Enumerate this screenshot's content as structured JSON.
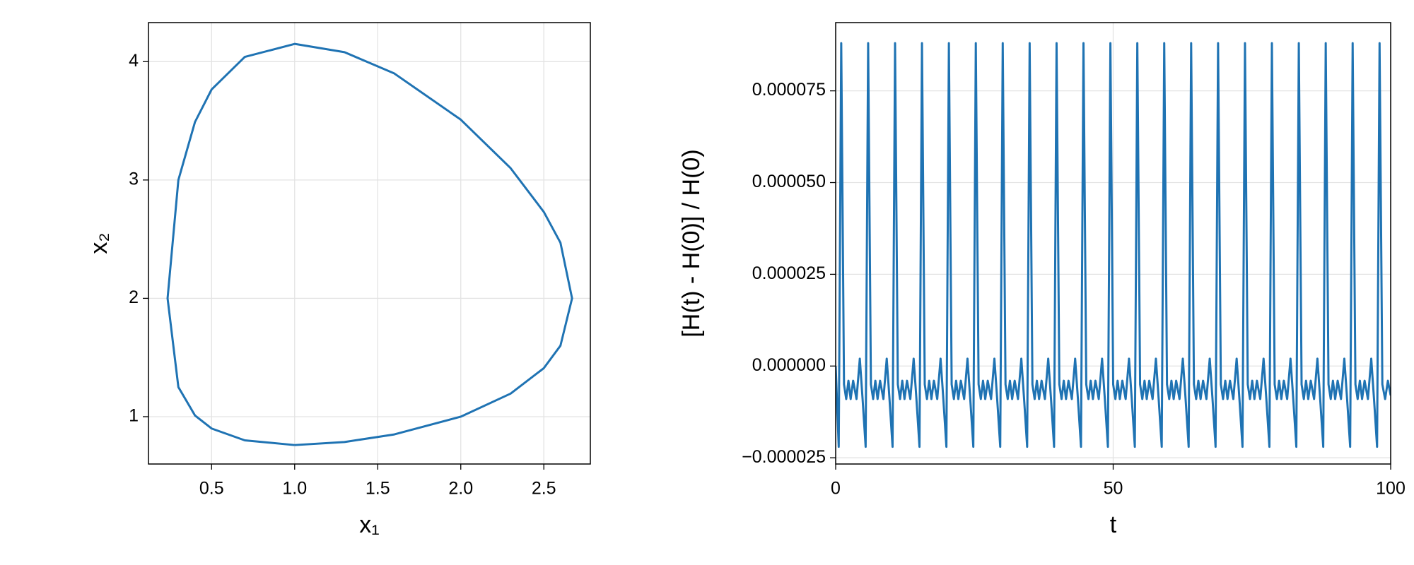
{
  "chart_data": [
    {
      "type": "line",
      "xlabel": "x₁",
      "ylabel": "x₂",
      "x": [
        1.0,
        1.3,
        1.6,
        2.0,
        2.3,
        2.5,
        2.6,
        2.67,
        2.6,
        2.5,
        2.3,
        2.0,
        1.6,
        1.3,
        1.0,
        0.7,
        0.5,
        0.4,
        0.3,
        0.235,
        0.3,
        0.4,
        0.5,
        0.7,
        1.0
      ],
      "series": [
        {
          "color": "#1f73b3",
          "values": [
            0.76,
            0.786,
            0.85,
            1.0,
            1.195,
            1.41,
            1.6,
            2.0,
            2.47,
            2.73,
            3.1,
            3.51,
            3.9,
            4.08,
            4.15,
            4.04,
            3.765,
            3.49,
            3.0,
            2.0,
            1.25,
            1.01,
            0.9,
            0.8,
            0.76
          ]
        }
      ],
      "xlim": [
        0.12,
        2.78
      ],
      "ylim": [
        0.6,
        4.33
      ],
      "xticks": [
        {
          "value": 0.5,
          "label": "0.5"
        },
        {
          "value": 1.0,
          "label": "1.0"
        },
        {
          "value": 1.5,
          "label": "1.5"
        },
        {
          "value": 2.0,
          "label": "2.0"
        },
        {
          "value": 2.5,
          "label": "2.5"
        }
      ],
      "yticks": [
        1,
        2,
        3,
        4
      ],
      "grid": true
    },
    {
      "type": "line",
      "xlabel": "t",
      "ylabel": "[H(t) - H(0)] / H(0)",
      "x": [
        0,
        0.55,
        1.0,
        1.5,
        1.9,
        2.3,
        2.7,
        3.15,
        3.75,
        4.35,
        4.85,
        5.4,
        5.85,
        6.35,
        6.75,
        7.15,
        7.55,
        8.0,
        8.6,
        9.2,
        9.7,
        10.25,
        10.7,
        11.2,
        11.6,
        12.0,
        12.4,
        12.85,
        13.45,
        14.05,
        14.55,
        15.1,
        15.55,
        16.05,
        16.45,
        16.85,
        17.25,
        17.7,
        18.3,
        18.9,
        19.4,
        19.95,
        20.4,
        20.9,
        21.3,
        21.7,
        22.1,
        22.55,
        23.15,
        23.75,
        24.25,
        24.8,
        25.25,
        25.75,
        26.15,
        26.55,
        26.95,
        27.4,
        28.0,
        28.6,
        29.1,
        29.65,
        30.1,
        30.6,
        31.0,
        31.4,
        31.8,
        32.25,
        32.85,
        33.45,
        33.95,
        34.5,
        34.95,
        35.45,
        35.85,
        36.25,
        36.65,
        37.1,
        37.7,
        38.3,
        38.8,
        39.35,
        39.8,
        40.3,
        40.7,
        41.1,
        41.5,
        41.95,
        42.55,
        43.15,
        43.65,
        44.2,
        44.65,
        45.15,
        45.55,
        45.95,
        46.35,
        46.8,
        47.4,
        48.0,
        48.5,
        49.05,
        49.5,
        50.0,
        50.4,
        50.8,
        51.2,
        51.65,
        52.25,
        52.85,
        53.35,
        53.9,
        54.35,
        54.85,
        55.25,
        55.65,
        56.05,
        56.5,
        57.1,
        57.7,
        58.2,
        58.75,
        59.2,
        59.7,
        60.1,
        60.5,
        60.9,
        61.35,
        61.95,
        62.55,
        63.05,
        63.6,
        64.05,
        64.55,
        64.95,
        65.35,
        65.75,
        66.2,
        66.8,
        67.4,
        67.9,
        68.45,
        68.9,
        69.4,
        69.8,
        70.2,
        70.6,
        71.05,
        71.65,
        72.25,
        72.75,
        73.3,
        73.75,
        74.25,
        74.65,
        75.05,
        75.45,
        75.9,
        76.5,
        77.1,
        77.6,
        78.15,
        78.6,
        79.1,
        79.5,
        79.9,
        80.3,
        80.75,
        81.35,
        81.95,
        82.45,
        83.0,
        83.45,
        83.95,
        84.35,
        84.75,
        85.15,
        85.6,
        86.2,
        86.8,
        87.3,
        87.85,
        88.3,
        88.8,
        89.2,
        89.6,
        90.0,
        90.45,
        91.05,
        91.65,
        92.15,
        92.7,
        93.15,
        93.65,
        94.05,
        94.45,
        94.85,
        95.3,
        95.9,
        96.5,
        97.0,
        97.55,
        98.0,
        98.5,
        99.0,
        99.5,
        100
      ],
      "series": [
        {
          "color": "#1f73b3",
          "values": [
            0,
            -2.2e-05,
            8.8e-05,
            -5e-06,
            -9e-06,
            -4e-06,
            -9e-06,
            -4e-06,
            -9e-06,
            2e-06,
            -9e-06,
            -2.2e-05,
            8.8e-05,
            -5e-06,
            -9e-06,
            -4e-06,
            -9e-06,
            -4e-06,
            -9e-06,
            2e-06,
            -9e-06,
            -2.2e-05,
            8.8e-05,
            -5e-06,
            -9e-06,
            -4e-06,
            -9e-06,
            -4e-06,
            -9e-06,
            2e-06,
            -9e-06,
            -2.2e-05,
            8.8e-05,
            -5e-06,
            -9e-06,
            -4e-06,
            -9e-06,
            -4e-06,
            -9e-06,
            2e-06,
            -9e-06,
            -2.2e-05,
            8.8e-05,
            -5e-06,
            -9e-06,
            -4e-06,
            -9e-06,
            -4e-06,
            -9e-06,
            2e-06,
            -9e-06,
            -2.2e-05,
            8.8e-05,
            -5e-06,
            -9e-06,
            -4e-06,
            -9e-06,
            -4e-06,
            -9e-06,
            2e-06,
            -9e-06,
            -2.2e-05,
            8.8e-05,
            -5e-06,
            -9e-06,
            -4e-06,
            -9e-06,
            -4e-06,
            -9e-06,
            2e-06,
            -9e-06,
            -2.2e-05,
            8.8e-05,
            -5e-06,
            -9e-06,
            -4e-06,
            -9e-06,
            -4e-06,
            -9e-06,
            2e-06,
            -9e-06,
            -2.2e-05,
            8.8e-05,
            -5e-06,
            -9e-06,
            -4e-06,
            -9e-06,
            -4e-06,
            -9e-06,
            2e-06,
            -9e-06,
            -2.2e-05,
            8.8e-05,
            -5e-06,
            -9e-06,
            -4e-06,
            -9e-06,
            -4e-06,
            -9e-06,
            2e-06,
            -9e-06,
            -2.2e-05,
            8.8e-05,
            -5e-06,
            -9e-06,
            -4e-06,
            -9e-06,
            -4e-06,
            -9e-06,
            2e-06,
            -9e-06,
            -2.2e-05,
            8.8e-05,
            -5e-06,
            -9e-06,
            -4e-06,
            -9e-06,
            -4e-06,
            -9e-06,
            2e-06,
            -9e-06,
            -2.2e-05,
            8.8e-05,
            -5e-06,
            -9e-06,
            -4e-06,
            -9e-06,
            -4e-06,
            -9e-06,
            2e-06,
            -9e-06,
            -2.2e-05,
            8.8e-05,
            -5e-06,
            -9e-06,
            -4e-06,
            -9e-06,
            -4e-06,
            -9e-06,
            2e-06,
            -9e-06,
            -2.2e-05,
            8.8e-05,
            -5e-06,
            -9e-06,
            -4e-06,
            -9e-06,
            -4e-06,
            -9e-06,
            2e-06,
            -9e-06,
            -2.2e-05,
            8.8e-05,
            -5e-06,
            -9e-06,
            -4e-06,
            -9e-06,
            -4e-06,
            -9e-06,
            2e-06,
            -9e-06,
            -2.2e-05,
            8.8e-05,
            -5e-06,
            -9e-06,
            -4e-06,
            -9e-06,
            -4e-06,
            -9e-06,
            2e-06,
            -9e-06,
            -2.2e-05,
            8.8e-05,
            -5e-06,
            -9e-06,
            -4e-06,
            -9e-06,
            -4e-06,
            -9e-06,
            2e-06,
            -9e-06,
            -2.2e-05,
            8.8e-05,
            -5e-06,
            -9e-06,
            -4e-06,
            -9e-06,
            -4e-06,
            -9e-06,
            2e-06,
            -9e-06,
            -2.2e-05,
            8.8e-05,
            -5e-06,
            -9e-06,
            -4e-06,
            -9e-06,
            -4e-06,
            -9e-06,
            2e-06,
            -9e-06,
            -2.2e-05,
            8.8e-05,
            -5e-06,
            -9e-06,
            -4e-06,
            -8e-06
          ]
        }
      ],
      "xlim": [
        0,
        100
      ],
      "ylim": [
        -2.67e-05,
        9.36e-05
      ],
      "xticks": [
        0,
        50,
        100
      ],
      "yticks": [
        {
          "value": -2.5e-05,
          "label": "−0.000025"
        },
        {
          "value": 0,
          "label": "0.000000"
        },
        {
          "value": 2.5e-05,
          "label": "0.000025"
        },
        {
          "value": 5e-05,
          "label": "0.000050"
        },
        {
          "value": 7.5e-05,
          "label": "0.000075"
        }
      ],
      "grid": true
    }
  ]
}
